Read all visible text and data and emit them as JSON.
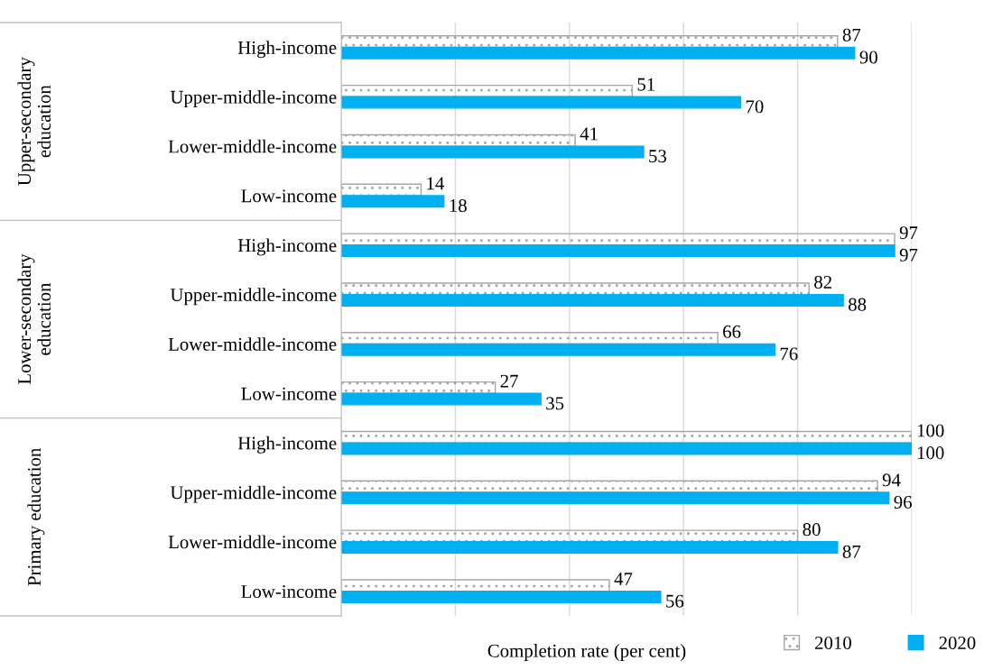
{
  "chart_data": {
    "type": "bar",
    "orientation": "horizontal",
    "xlabel": "Completion rate (per cent)",
    "categories": [
      "High-income",
      "Upper-middle-income",
      "Lower-middle-income",
      "Low-income",
      "High-income",
      "Upper-middle-income",
      "Lower-middle-income",
      "Low-income",
      "High-income",
      "Upper-middle-income",
      "Lower-middle-income",
      "Low-income"
    ],
    "annotations": [
      "Upper-secondary education",
      "Lower-secondary education",
      "Primary education"
    ],
    "series": [
      {
        "name": "2010",
        "color": "#a6a6a6",
        "values": [
          87,
          51,
          41,
          14,
          97,
          82,
          66,
          27,
          100,
          94,
          80,
          47
        ]
      },
      {
        "name": "2020",
        "color": "#00b0f0",
        "values": [
          90,
          70,
          53,
          18,
          97,
          88,
          76,
          35,
          100,
          96,
          87,
          56
        ]
      }
    ],
    "xlim": [
      0,
      100
    ],
    "xticks": [
      {
        "value": 0,
        "label": null
      },
      {
        "value": 20,
        "label": null
      },
      {
        "value": 40,
        "label": null
      },
      {
        "value": 60,
        "label": null
      },
      {
        "value": 80,
        "label": null
      },
      {
        "value": 100,
        "label": null
      }
    ],
    "tick_labels": "y",
    "grid": "x",
    "data_labels": true,
    "legend": "bottom right"
  }
}
